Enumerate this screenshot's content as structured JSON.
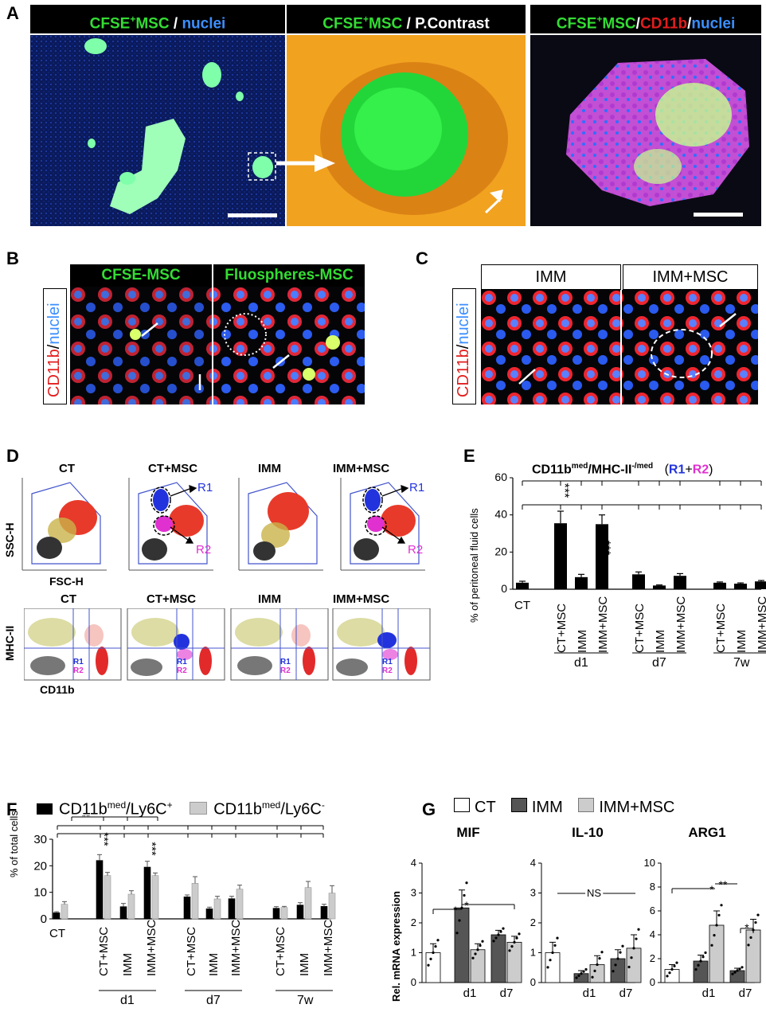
{
  "panels": {
    "a": "A",
    "b": "B",
    "c": "C",
    "d": "D",
    "e": "E",
    "f": "F",
    "g": "G"
  },
  "panel_a": {
    "h1_cfse": "CFSE",
    "h1_plus": "+",
    "h1_msc": "MSC",
    "h1_sep": " / ",
    "h1_nuc": "nuclei",
    "h2_cfse": "CFSE",
    "h2_plus": "+",
    "h2_msc": "MSC",
    "h2_rest": " / P.Contrast",
    "h3_cfse": "CFSE",
    "h3_plus": "+",
    "h3_msc": "MSC",
    "h3_s1": "/",
    "h3_cd": "CD11b",
    "h3_s2": "/",
    "h3_nuc": "nuclei"
  },
  "panel_b": {
    "h1": "CFSE-MSC",
    "h2": "Fluospheres-MSC",
    "side_cd": "CD11b",
    "side_sep": "/",
    "side_nuc": "nuclei"
  },
  "panel_c": {
    "h1": "IMM",
    "h2": "IMM+MSC",
    "side_cd": "CD11b",
    "side_sep": "/",
    "side_nuc": "nuclei"
  },
  "panel_d": {
    "groups": [
      "CT",
      "CT+MSC",
      "IMM",
      "IMM+MSC"
    ],
    "top_y": "SSC-H",
    "top_x": "FSC-H",
    "bot_y": "MHC-II",
    "bot_x": "CD11b",
    "r1": "R1",
    "r2": "R2"
  },
  "panel_e": {
    "title_main": "CD11b",
    "title_sup1": "med",
    "title_mid": "/MHC-II",
    "title_sup2": "-/med",
    "title_paren_open": "(",
    "title_r1": "R1",
    "title_plus": "+",
    "title_r2": "R2",
    "title_paren_close": ")",
    "ylabel": "% of peritoneal fluid cells",
    "yticks": [
      "0",
      "20",
      "40",
      "60"
    ]
  },
  "panel_f": {
    "legend1_main": "CD11b",
    "legend1_sup": "med",
    "legend1_tail": "/Ly6C",
    "legend1_sign": "+",
    "legend2_main": "CD11b",
    "legend2_sup": "med",
    "legend2_tail": "/Ly6C",
    "legend2_sign": "-",
    "ylabel": "% of total cells",
    "yticks": [
      "0",
      "10",
      "20",
      "30"
    ]
  },
  "panel_g": {
    "legend": [
      "CT",
      "IMM",
      "IMM+MSC"
    ],
    "ylabel": "Rel. mRNA expression",
    "ns": "NS"
  },
  "chart_data": [
    {
      "type": "bar",
      "panel": "E",
      "title": "CD11b med/MHC-II -/med (R1+R2)",
      "ylabel": "% of peritoneal fluid cells",
      "ylim": [
        0,
        60
      ],
      "categories": [
        "CT",
        "CT+MSC",
        "IMM",
        "IMM+MSC",
        "CT+MSC",
        "IMM",
        "IMM+MSC",
        "CT+MSC",
        "IMM",
        "IMM+MSC"
      ],
      "groups": [
        "",
        "d1",
        "d1",
        "d1",
        "d7",
        "d7",
        "d7",
        "7w",
        "7w",
        "7w"
      ],
      "values": [
        3.5,
        35.5,
        6.5,
        35,
        8,
        2,
        7.2,
        3.5,
        3,
        4.2
      ],
      "errors": [
        0.8,
        6.5,
        1.5,
        5,
        1.3,
        0.3,
        1.2,
        0.4,
        0.4,
        0.5
      ],
      "annotations": [
        "***",
        "***"
      ]
    },
    {
      "type": "bar",
      "panel": "F",
      "ylabel": "% of total cells",
      "ylim": [
        0,
        30
      ],
      "categories": [
        "CT",
        "CT+MSC",
        "IMM",
        "IMM+MSC",
        "CT+MSC",
        "IMM",
        "IMM+MSC",
        "CT+MSC",
        "IMM",
        "IMM+MSC"
      ],
      "groups": [
        "",
        "d1",
        "d1",
        "d1",
        "d7",
        "d7",
        "d7",
        "7w",
        "7w",
        "7w"
      ],
      "series": [
        {
          "name": "CD11b med/Ly6C +",
          "values": [
            2.3,
            22,
            4.6,
            19.5,
            8.3,
            3.8,
            7.6,
            4,
            5.2,
            4.7
          ],
          "errors": [
            0.4,
            2.2,
            1.2,
            2.2,
            0.7,
            0.6,
            0.9,
            0.6,
            0.9,
            0.8
          ]
        },
        {
          "name": "CD11b med/Ly6C -",
          "values": [
            5.5,
            16.3,
            9.3,
            16.3,
            13.4,
            7.5,
            11.2,
            4.3,
            11.8,
            9.7
          ],
          "errors": [
            1,
            1.2,
            1.3,
            1,
            2.5,
            1,
            1.5,
            0.4,
            2.3,
            2.8
          ]
        }
      ],
      "annotations": [
        "**",
        "***",
        "***"
      ]
    },
    {
      "type": "bar",
      "panel": "G-MIF",
      "title": "MIF",
      "ylim": [
        0,
        4
      ],
      "categories": [
        "CT",
        "d1",
        "d7"
      ],
      "series": [
        {
          "name": "CT",
          "values": [
            1,
            null,
            null
          ],
          "errors": [
            0.3,
            null,
            null
          ]
        },
        {
          "name": "IMM",
          "values": [
            null,
            2.5,
            1.6
          ],
          "errors": [
            null,
            0.6,
            0.15
          ]
        },
        {
          "name": "IMM+MSC",
          "values": [
            null,
            1.1,
            1.35
          ],
          "errors": [
            null,
            0.2,
            0.2
          ]
        }
      ],
      "annotations": [
        "*",
        "*"
      ]
    },
    {
      "type": "bar",
      "panel": "G-IL-10",
      "title": "IL-10",
      "ylim": [
        0,
        4
      ],
      "categories": [
        "CT",
        "d1",
        "d7"
      ],
      "series": [
        {
          "name": "CT",
          "values": [
            1,
            null,
            null
          ],
          "errors": [
            0.35,
            null,
            null
          ]
        },
        {
          "name": "IMM",
          "values": [
            null,
            0.3,
            0.8
          ],
          "errors": [
            null,
            0.1,
            0.3
          ]
        },
        {
          "name": "IMM+MSC",
          "values": [
            null,
            0.6,
            1.15
          ],
          "errors": [
            null,
            0.3,
            0.45
          ]
        }
      ],
      "annotations": [
        "NS"
      ]
    },
    {
      "type": "bar",
      "panel": "G-ARG1",
      "title": "ARG1",
      "ylim": [
        0,
        10
      ],
      "categories": [
        "CT",
        "d1",
        "d7"
      ],
      "series": [
        {
          "name": "CT",
          "values": [
            1.1,
            null,
            null
          ],
          "errors": [
            0.4,
            null,
            null
          ]
        },
        {
          "name": "IMM",
          "values": [
            null,
            1.8,
            1
          ],
          "errors": [
            null,
            0.5,
            0.2
          ]
        },
        {
          "name": "IMM+MSC",
          "values": [
            null,
            4.8,
            4.4
          ],
          "errors": [
            null,
            1.2,
            0.9
          ]
        }
      ],
      "annotations": [
        "*",
        "**",
        "*"
      ]
    }
  ]
}
